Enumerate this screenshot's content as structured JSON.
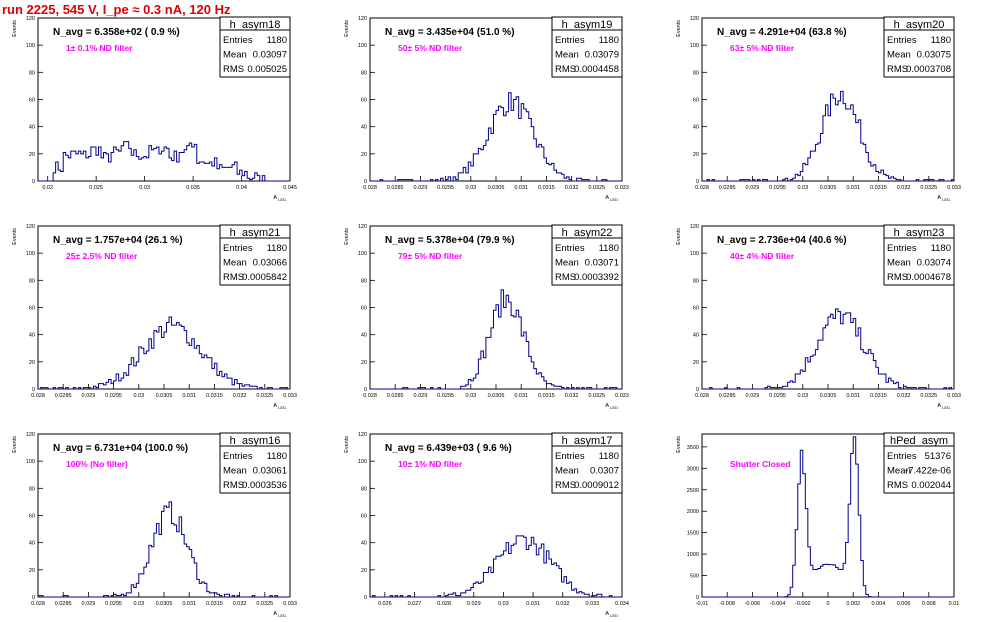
{
  "header": {
    "run_title": "run 2225,   545 V, I_pe ≈ 0.3 nA, 120 Hz"
  },
  "colors": {
    "hist": "#00008b",
    "annotation": "#ff00ff",
    "title": "#e00000"
  },
  "stats_labels": {
    "entries": "Entries",
    "mean": "Mean",
    "rms": "RMS"
  },
  "ylabel": "Events",
  "chart_data": [
    {
      "type": "bar",
      "name": "h_asym18",
      "avg": "N_avg = 6.358e+02 ( 0.9 %)",
      "note": "1± 0.1% ND filter",
      "entries": "1180",
      "mean": "0.03097",
      "rms": "0.005025",
      "xlabel": "A_LED",
      "xlim": [
        0.019,
        0.045
      ],
      "ylim": [
        0,
        120
      ],
      "xticks": [
        0.02,
        0.025,
        0.03,
        0.035,
        0.04,
        0.045
      ],
      "xtick_labels": [
        "0.02",
        "0.025",
        "0.03",
        "0.035",
        "0.04",
        "0.045"
      ],
      "yticks": [
        0,
        20,
        40,
        60,
        80,
        100,
        120
      ],
      "shape": {
        "kind": "broad",
        "lo": 0.0205,
        "hi": 0.0425,
        "peak": [
          10,
          19,
          20,
          19,
          23,
          17,
          21,
          25,
          20,
          19,
          22,
          24,
          18,
          22,
          28,
          15,
          13,
          9,
          10,
          6,
          3,
          1
        ]
      }
    },
    {
      "type": "bar",
      "name": "h_asym19",
      "avg": "N_avg = 3.435e+04 (51.0 %)",
      "note": "50± 5% ND filter",
      "entries": "1180",
      "mean": "0.03079",
      "rms": "0.0004458",
      "xlabel": "A_LED",
      "xlim": [
        0.028,
        0.033
      ],
      "ylim": [
        0,
        120
      ],
      "xticks": [
        0.028,
        0.0285,
        0.029,
        0.0295,
        0.03,
        0.0305,
        0.031,
        0.0315,
        0.032,
        0.0325,
        0.033
      ],
      "xtick_labels": [
        "0.028",
        "0.0285",
        "0.029",
        "0.0295",
        "0.03",
        "0.0305",
        "0.031",
        "0.0315",
        "0.032",
        "0.0325",
        "0.033"
      ],
      "yticks": [
        0,
        20,
        40,
        60,
        80,
        100,
        120
      ],
      "shape": {
        "kind": "gauss",
        "mu": 0.03079,
        "sigma": 0.000446,
        "amp": 58,
        "n": 1180
      }
    },
    {
      "type": "bar",
      "name": "h_asym20",
      "avg": "N_avg = 4.291e+04 (63.8 %)",
      "note": "63± 5% ND filter",
      "entries": "1180",
      "mean": "0.03075",
      "rms": "0.0003708",
      "xlabel": "A_LED",
      "xlim": [
        0.028,
        0.033
      ],
      "ylim": [
        0,
        120
      ],
      "xticks": [
        0.028,
        0.0285,
        0.029,
        0.0295,
        0.03,
        0.0305,
        0.031,
        0.0315,
        0.032,
        0.0325,
        0.033
      ],
      "xtick_labels": [
        "0.028",
        "0.0285",
        "0.029",
        "0.0295",
        "0.03",
        "0.0305",
        "0.031",
        "0.0315",
        "0.032",
        "0.0325",
        "0.033"
      ],
      "yticks": [
        0,
        20,
        40,
        60,
        80,
        100,
        120
      ],
      "shape": {
        "kind": "gauss",
        "mu": 0.03075,
        "sigma": 0.000371,
        "amp": 64,
        "n": 1180
      }
    },
    {
      "type": "bar",
      "name": "h_asym21",
      "avg": "N_avg = 1.757e+04 (26.1 %)",
      "note": "25± 2.5% ND filter",
      "entries": "1180",
      "mean": "0.03066",
      "rms": "0.0005842",
      "xlabel": "A_LED",
      "xlim": [
        0.028,
        0.033
      ],
      "ylim": [
        0,
        120
      ],
      "xticks": [
        0.028,
        0.0285,
        0.029,
        0.0295,
        0.03,
        0.0305,
        0.031,
        0.0315,
        0.032,
        0.0325,
        0.033
      ],
      "xtick_labels": [
        "0.028",
        "0.0285",
        "0.029",
        "0.0295",
        "0.03",
        "0.0305",
        "0.031",
        "0.0315",
        "0.032",
        "0.0325",
        "0.033"
      ],
      "yticks": [
        0,
        20,
        40,
        60,
        80,
        100,
        120
      ],
      "shape": {
        "kind": "gauss",
        "mu": 0.03066,
        "sigma": 0.000584,
        "amp": 46,
        "n": 1180
      }
    },
    {
      "type": "bar",
      "name": "h_asym22",
      "avg": "N_avg = 5.378e+04 (79.9 %)",
      "note": "79± 5% ND filter",
      "entries": "1180",
      "mean": "0.03071",
      "rms": "0.0003392",
      "xlabel": "A_LED",
      "xlim": [
        0.028,
        0.033
      ],
      "ylim": [
        0,
        120
      ],
      "xticks": [
        0.028,
        0.0285,
        0.029,
        0.0295,
        0.03,
        0.0305,
        0.031,
        0.0315,
        0.032,
        0.0325,
        0.033
      ],
      "xtick_labels": [
        "0.028",
        "0.0285",
        "0.029",
        "0.0295",
        "0.03",
        "0.0305",
        "0.031",
        "0.0315",
        "0.032",
        "0.0325",
        "0.033"
      ],
      "yticks": [
        0,
        20,
        40,
        60,
        80,
        100,
        120
      ],
      "shape": {
        "kind": "gauss",
        "mu": 0.03071,
        "sigma": 0.000339,
        "amp": 66,
        "n": 1180
      }
    },
    {
      "type": "bar",
      "name": "h_asym23",
      "avg": "N_avg = 2.736e+04 (40.6 %)",
      "note": "40± 4% ND filter",
      "entries": "1180",
      "mean": "0.03074",
      "rms": "0.0004678",
      "xlabel": "A_LED",
      "xlim": [
        0.028,
        0.033
      ],
      "ylim": [
        0,
        120
      ],
      "xticks": [
        0.028,
        0.0285,
        0.029,
        0.0295,
        0.03,
        0.0305,
        0.031,
        0.0315,
        0.032,
        0.0325,
        0.033
      ],
      "xtick_labels": [
        "0.028",
        "0.0285",
        "0.029",
        "0.0295",
        "0.03",
        "0.0305",
        "0.031",
        "0.0315",
        "0.032",
        "0.0325",
        "0.033"
      ],
      "yticks": [
        0,
        20,
        40,
        60,
        80,
        100,
        120
      ],
      "shape": {
        "kind": "gauss",
        "mu": 0.03074,
        "sigma": 0.000468,
        "amp": 54,
        "n": 1180
      }
    },
    {
      "type": "bar",
      "name": "h_asym16",
      "avg": "N_avg = 6.731e+04 (100.0 %)",
      "note": "100% (No filter)",
      "entries": "1180",
      "mean": "0.03061",
      "rms": "0.0003536",
      "xlabel": "A_LED",
      "xlim": [
        0.028,
        0.033
      ],
      "ylim": [
        0,
        120
      ],
      "xticks": [
        0.028,
        0.0285,
        0.029,
        0.0295,
        0.03,
        0.0305,
        0.031,
        0.0315,
        0.032,
        0.0325,
        0.033
      ],
      "xtick_labels": [
        "0.028",
        "0.0285",
        "0.029",
        "0.0295",
        "0.03",
        "0.0305",
        "0.031",
        "0.0315",
        "0.032",
        "0.0325",
        "0.033"
      ],
      "yticks": [
        0,
        20,
        40,
        60,
        80,
        100,
        120
      ],
      "shape": {
        "kind": "gauss",
        "mu": 0.03061,
        "sigma": 0.000354,
        "amp": 62,
        "n": 1180
      }
    },
    {
      "type": "bar",
      "name": "h_asym17",
      "avg": "N_avg = 6.439e+03 ( 9.6 %)",
      "note": "10± 1% ND filter",
      "entries": "1180",
      "mean": "0.0307",
      "rms": "0.0009012",
      "xlabel": "A_LED",
      "xlim": [
        0.0255,
        0.034
      ],
      "ylim": [
        0,
        120
      ],
      "xticks": [
        0.026,
        0.027,
        0.028,
        0.029,
        0.03,
        0.031,
        0.032,
        0.033,
        0.034
      ],
      "xtick_labels": [
        "0.026",
        "0.027",
        "0.028",
        "0.029",
        "0.03",
        "0.031",
        "0.032",
        "0.033",
        "0.034"
      ],
      "yticks": [
        0,
        20,
        40,
        60,
        80,
        100,
        120
      ],
      "shape": {
        "kind": "gauss",
        "mu": 0.0307,
        "sigma": 0.0009,
        "amp": 42,
        "n": 1180
      }
    },
    {
      "type": "bar",
      "name": "hPed_asym",
      "avg": "",
      "note": "Shutter Closed",
      "entries": "51376",
      "mean": "-7.422e-06",
      "rms": "0.002044",
      "xlabel": "",
      "xlim": [
        -0.01,
        0.01
      ],
      "ylim": [
        0,
        3800
      ],
      "xticks": [
        -0.01,
        -0.008,
        -0.006,
        -0.004,
        -0.002,
        0,
        0.002,
        0.004,
        0.006,
        0.008,
        0.01
      ],
      "xtick_labels": [
        "-0.01",
        "-0.008",
        "-0.006",
        "-0.004",
        "-0.002",
        "0",
        "0.002",
        "0.004",
        "0.006",
        "0.008",
        "0.01"
      ],
      "yticks": [
        0,
        500,
        1000,
        1500,
        2000,
        2500,
        3000,
        3500
      ],
      "shape": {
        "kind": "double",
        "peaks": [
          {
            "mu": -0.0021,
            "sigma": 0.00035,
            "amp": 3100
          },
          {
            "mu": 0.0021,
            "sigma": 0.00035,
            "amp": 3600
          }
        ],
        "floor": 700
      }
    }
  ]
}
